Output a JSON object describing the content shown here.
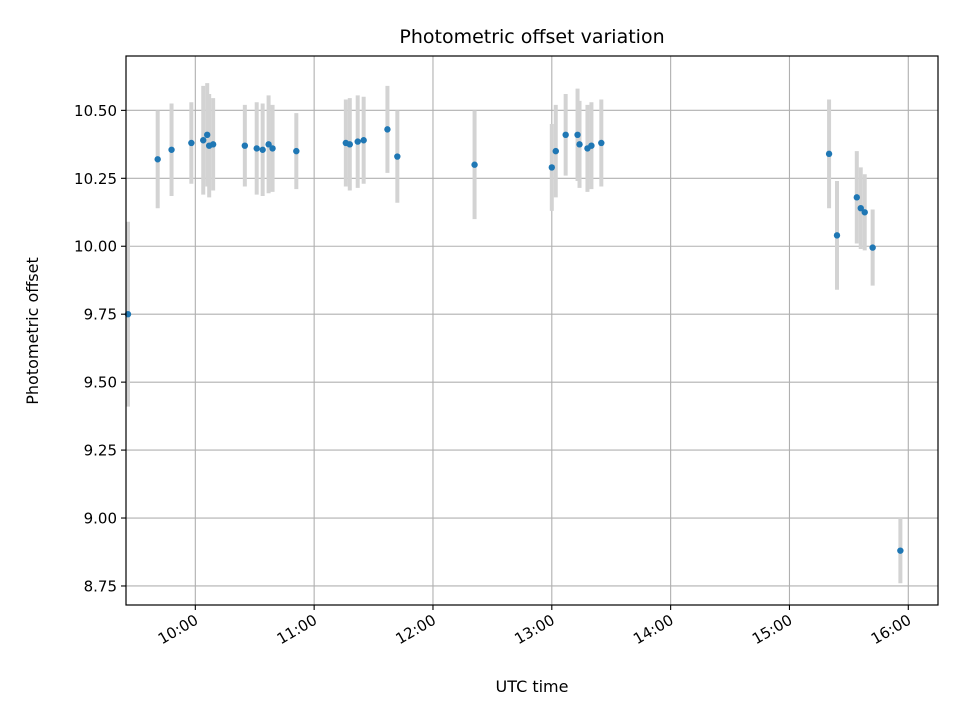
{
  "chart_data": {
    "type": "scatter",
    "title": "Photometric offset variation",
    "xlabel": "UTC time",
    "ylabel": "Photometric offset",
    "x_unit": "UTC time of day",
    "xlim": [
      "09:25",
      "16:15"
    ],
    "ylim": [
      8.68,
      10.7
    ],
    "x_ticks": [
      "10:00",
      "11:00",
      "12:00",
      "13:00",
      "14:00",
      "15:00",
      "16:00"
    ],
    "y_ticks": [
      "8.75",
      "9.00",
      "9.25",
      "9.50",
      "9.75",
      "10.00",
      "10.25",
      "10.50"
    ],
    "grid": true,
    "x_tick_rotation": "30 degrees",
    "colors": {
      "point": "#1f77b4",
      "errorbar": "#d3d3d3",
      "grid": "#b0b0b0"
    },
    "points": [
      {
        "x": "09:26",
        "y": 9.75,
        "err": 0.34
      },
      {
        "x": "09:41",
        "y": 10.32,
        "err": 0.18
      },
      {
        "x": "09:48",
        "y": 10.355,
        "err": 0.17
      },
      {
        "x": "09:58",
        "y": 10.38,
        "err": 0.15
      },
      {
        "x": "10:04",
        "y": 10.39,
        "err": 0.2
      },
      {
        "x": "10:06",
        "y": 10.41,
        "err": 0.19
      },
      {
        "x": "10:07",
        "y": 10.37,
        "err": 0.19
      },
      {
        "x": "10:09",
        "y": 10.375,
        "err": 0.17
      },
      {
        "x": "10:25",
        "y": 10.37,
        "err": 0.15
      },
      {
        "x": "10:31",
        "y": 10.36,
        "err": 0.17
      },
      {
        "x": "10:34",
        "y": 10.355,
        "err": 0.17
      },
      {
        "x": "10:37",
        "y": 10.375,
        "err": 0.18
      },
      {
        "x": "10:39",
        "y": 10.36,
        "err": 0.16
      },
      {
        "x": "10:51",
        "y": 10.35,
        "err": 0.14
      },
      {
        "x": "11:16",
        "y": 10.38,
        "err": 0.16
      },
      {
        "x": "11:18",
        "y": 10.375,
        "err": 0.17
      },
      {
        "x": "11:22",
        "y": 10.385,
        "err": 0.17
      },
      {
        "x": "11:25",
        "y": 10.39,
        "err": 0.16
      },
      {
        "x": "11:37",
        "y": 10.43,
        "err": 0.16
      },
      {
        "x": "11:42",
        "y": 10.33,
        "err": 0.17
      },
      {
        "x": "12:21",
        "y": 10.3,
        "err": 0.2
      },
      {
        "x": "13:00",
        "y": 10.29,
        "err": 0.16
      },
      {
        "x": "13:02",
        "y": 10.35,
        "err": 0.17
      },
      {
        "x": "13:07",
        "y": 10.41,
        "err": 0.15
      },
      {
        "x": "13:13",
        "y": 10.41,
        "err": 0.17
      },
      {
        "x": "13:14",
        "y": 10.375,
        "err": 0.16
      },
      {
        "x": "13:18",
        "y": 10.36,
        "err": 0.16
      },
      {
        "x": "13:20",
        "y": 10.37,
        "err": 0.16
      },
      {
        "x": "13:25",
        "y": 10.38,
        "err": 0.16
      },
      {
        "x": "15:20",
        "y": 10.34,
        "err": 0.2
      },
      {
        "x": "15:24",
        "y": 10.04,
        "err": 0.2
      },
      {
        "x": "15:34",
        "y": 10.18,
        "err": 0.17
      },
      {
        "x": "15:36",
        "y": 10.14,
        "err": 0.15
      },
      {
        "x": "15:38",
        "y": 10.125,
        "err": 0.14
      },
      {
        "x": "15:42",
        "y": 9.995,
        "err": 0.14
      },
      {
        "x": "15:56",
        "y": 8.88,
        "err": 0.12
      }
    ]
  }
}
